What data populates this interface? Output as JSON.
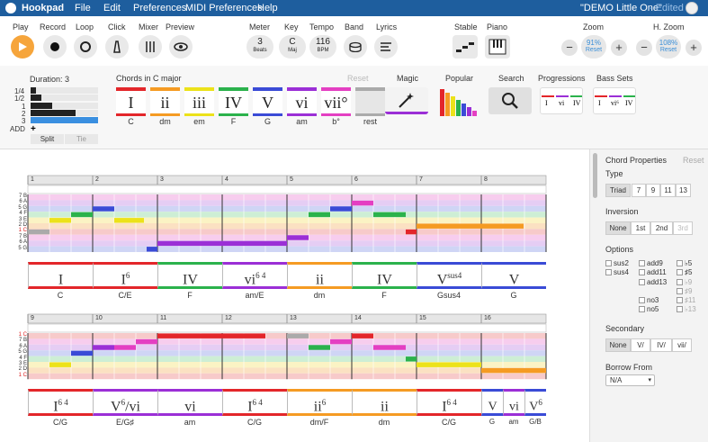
{
  "menubar": {
    "app": "Hookpad",
    "items": [
      "File",
      "Edit",
      "Preferences",
      "MIDI Preferences",
      "Help"
    ],
    "doc_title": "\"DEMO Little One\"",
    "status": "- Edited"
  },
  "toolbar": {
    "play": "Play",
    "record": "Record",
    "loop": "Loop",
    "click": "Click",
    "mixer": "Mixer",
    "preview": "Preview",
    "meter": "Meter",
    "meter_value": "3",
    "meter_unit": "Beats",
    "key": "Key",
    "key_value": "C",
    "key_unit": "Maj",
    "tempo": "Tempo",
    "tempo_value": "116",
    "tempo_unit": "BPM",
    "band": "Band",
    "lyrics": "Lyrics",
    "stable": "Stable",
    "piano": "Piano",
    "zoom": "Zoom",
    "zoom_value": "91%",
    "zoom_reset": "Reset",
    "hzoom": "H. Zoom",
    "hzoom_value": "108%",
    "hzoom_reset": "Reset"
  },
  "palette": {
    "duration_title": "Duration: 3",
    "durations": [
      "1/4",
      "1/2",
      "1",
      "2",
      "3",
      "ADD"
    ],
    "split": "Split",
    "tie": "Tie",
    "chords_title": "Chords in C major",
    "reset": "Reset",
    "chords": [
      {
        "roman": "I",
        "name": "C",
        "color": "#e3262a"
      },
      {
        "roman": "ii",
        "name": "dm",
        "color": "#f59b23"
      },
      {
        "roman": "iii",
        "name": "em",
        "color": "#ece21a"
      },
      {
        "roman": "IV",
        "name": "F",
        "color": "#2bb24c"
      },
      {
        "roman": "V",
        "name": "G",
        "color": "#3a4bd6"
      },
      {
        "roman": "vi",
        "name": "am",
        "color": "#9b2fd6"
      },
      {
        "roman": "vii°",
        "name": "b°",
        "color": "#e43fc2"
      },
      {
        "roman": "",
        "name": "rest",
        "color": "#aaaaaa"
      }
    ],
    "magic": "Magic",
    "popular": "Popular",
    "search": "Search",
    "progressions": "Progressions",
    "bass_sets": "Bass Sets"
  },
  "sheet": {
    "row1_measures": [
      "1",
      "2",
      "3",
      "4",
      "5",
      "6",
      "7",
      "8"
    ],
    "row2_measures": [
      "9",
      "10",
      "11",
      "12",
      "13",
      "14",
      "15",
      "16"
    ],
    "row1_labels": [
      "7 B",
      "6 A",
      "5 G",
      "4 F",
      "3 E",
      "2 D",
      "1 C",
      "7 B",
      "6 A",
      "5 G"
    ],
    "row2_labels": [
      "1 C",
      "7 B",
      "6 A",
      "5 G",
      "4 F",
      "3 E",
      "2 D",
      "1 C"
    ],
    "row1_chords": [
      {
        "roman": "I",
        "sup": "",
        "name": "C",
        "color": "#e3262a"
      },
      {
        "roman": "I",
        "sup": "6",
        "name": "C/E",
        "color": "#e3262a"
      },
      {
        "roman": "IV",
        "sup": "",
        "name": "F",
        "color": "#2bb24c"
      },
      {
        "roman": "vi",
        "sup": "6 4",
        "name": "am/E",
        "color": "#9b2fd6"
      },
      {
        "roman": "ii",
        "sup": "",
        "name": "dm",
        "color": "#f59b23"
      },
      {
        "roman": "IV",
        "sup": "",
        "name": "F",
        "color": "#2bb24c"
      },
      {
        "roman": "V",
        "sup": "sus4",
        "name": "Gsus4",
        "color": "#3a4bd6"
      },
      {
        "roman": "V",
        "sup": "",
        "name": "G",
        "color": "#3a4bd6"
      }
    ],
    "row2_chords": [
      {
        "roman": "I",
        "sup": "6 4",
        "name": "C/G",
        "color": "#e3262a"
      },
      {
        "roman": "V",
        "sup": "6",
        "suffix": "/vi",
        "name": "E/G♯",
        "color": "#9b2fd6"
      },
      {
        "roman": "vi",
        "sup": "",
        "name": "am",
        "color": "#9b2fd6"
      },
      {
        "roman": "I",
        "sup": "6 4",
        "name": "C/G",
        "color": "#e3262a"
      },
      {
        "roman": "ii",
        "sup": "6",
        "name": "dm/F",
        "color": "#f59b23"
      },
      {
        "roman": "ii",
        "sup": "",
        "name": "dm",
        "color": "#f59b23"
      },
      {
        "roman": "I",
        "sup": "6 4",
        "name": "C/G",
        "color": "#e3262a"
      },
      {
        "roman": "V",
        "sup": "",
        "name": "G",
        "color": "#3a4bd6"
      },
      {
        "roman": "vi",
        "sup": "",
        "name": "am",
        "color": "#9b2fd6"
      },
      {
        "roman": "V",
        "sup": "6",
        "name": "G/B",
        "color": "#3a4bd6"
      }
    ]
  },
  "panel": {
    "title": "Chord Properties",
    "reset": "Reset",
    "type": "Type",
    "type_options": [
      "Triad",
      "7",
      "9",
      "11",
      "13"
    ],
    "inversion": "Inversion",
    "inversion_options": [
      "None",
      "1st",
      "2nd",
      "3rd"
    ],
    "options": "Options",
    "opt_col1": [
      "sus2",
      "sus4"
    ],
    "opt_col2": [
      "add9",
      "add11",
      "add13",
      "no3",
      "no5"
    ],
    "opt_col3": [
      "♭5",
      "♯5",
      "♭9",
      "♯9",
      "♯11",
      "♭13"
    ],
    "secondary": "Secondary",
    "secondary_options": [
      "None",
      "V/",
      "IV/",
      "vii/"
    ],
    "borrow": "Borrow From",
    "borrow_value": "N/A"
  }
}
